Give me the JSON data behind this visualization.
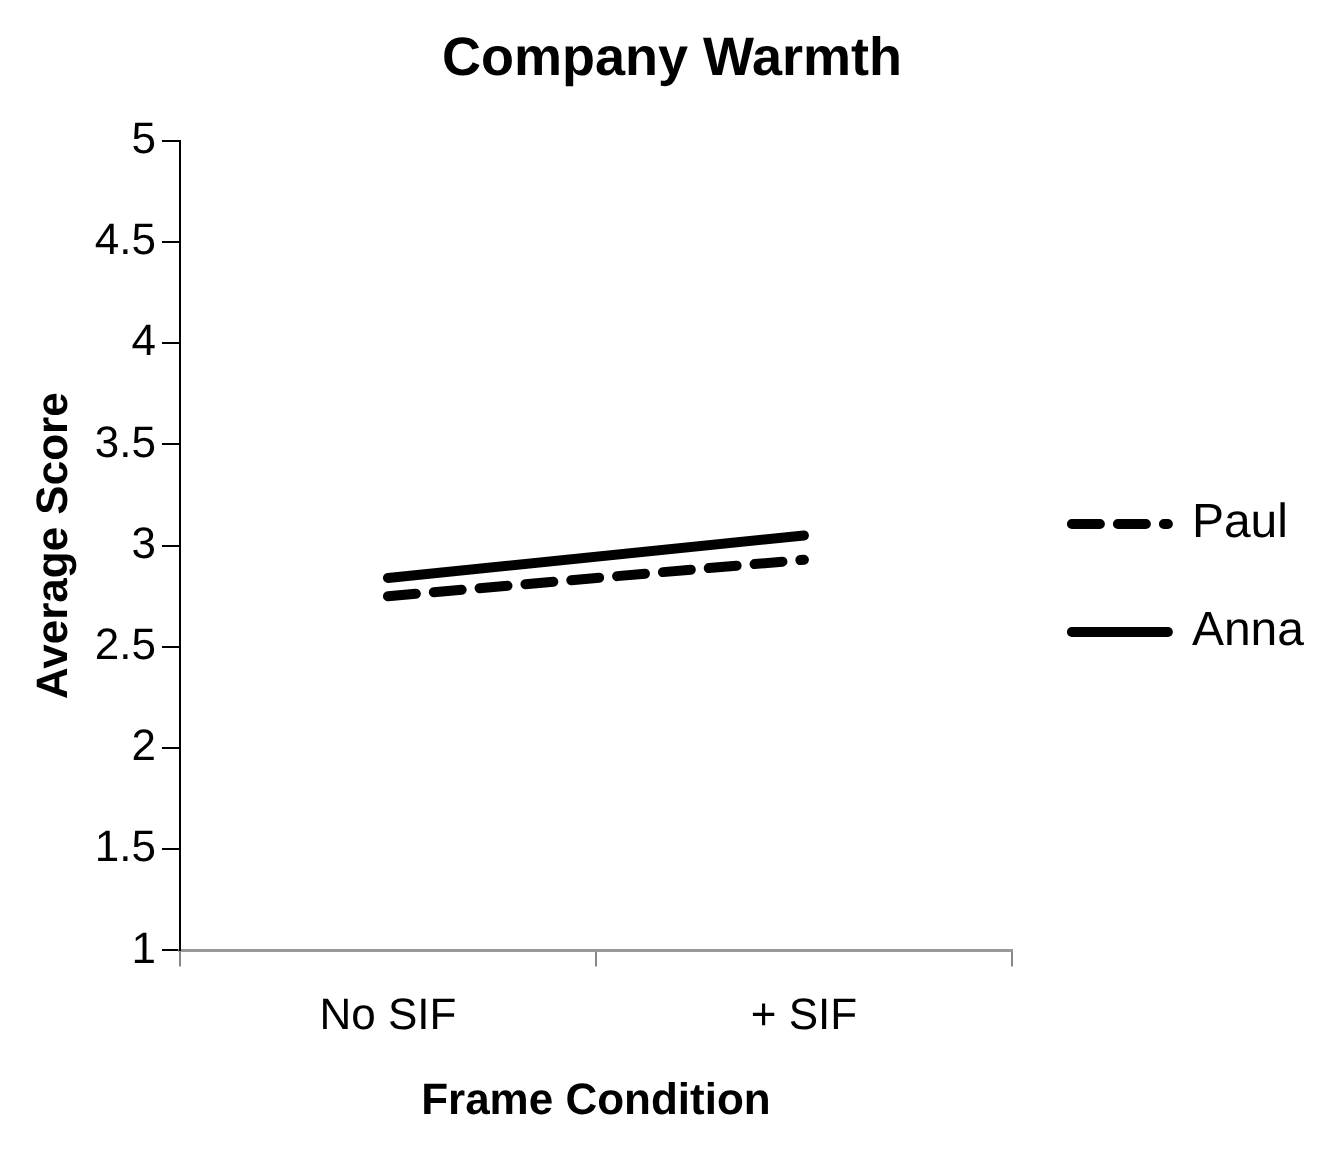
{
  "chart_data": {
    "type": "line",
    "title": "Company Warmth",
    "xlabel": "Frame Condition",
    "ylabel": "Average Score",
    "categories": [
      "No SIF",
      "+ SIF"
    ],
    "series": [
      {
        "name": "Paul",
        "color": "#000000",
        "values": [
          2.75,
          2.93
        ],
        "line_style": "dashed"
      },
      {
        "name": "Anna",
        "color": "#000000",
        "values": [
          2.84,
          3.05
        ],
        "line_style": "solid"
      }
    ],
    "ylim": [
      1,
      5
    ],
    "yticks": [
      1,
      1.5,
      2,
      2.5,
      3,
      3.5,
      4,
      4.5,
      5
    ],
    "grid": false,
    "legend": "right",
    "marker": "none"
  }
}
